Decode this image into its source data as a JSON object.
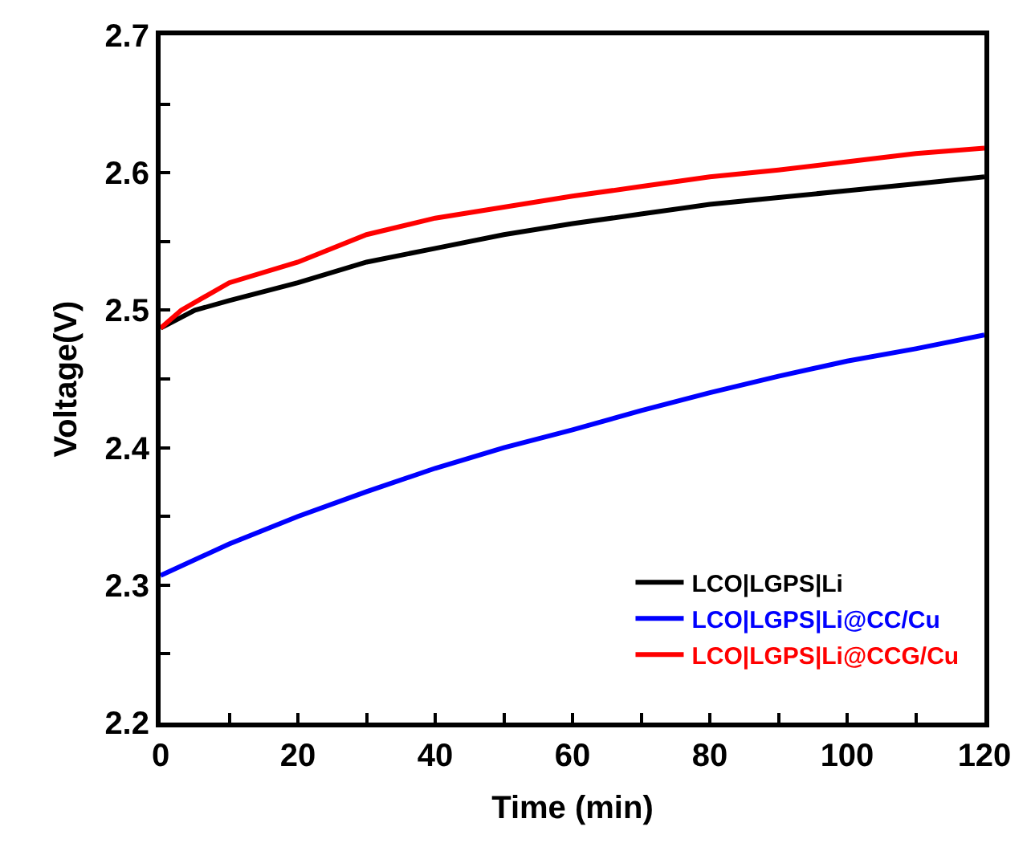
{
  "chart_data": {
    "type": "line",
    "xlabel": "Time (min)",
    "ylabel": "Voltage(V)",
    "xlim": [
      0,
      120
    ],
    "ylim": [
      2.2,
      2.7
    ],
    "xticks": [
      0,
      {
        "value": 10,
        "label": null
      },
      20,
      {
        "value": 30,
        "label": null
      },
      40,
      {
        "value": 50,
        "label": null
      },
      60,
      {
        "value": 70,
        "label": null
      },
      80,
      {
        "value": 90,
        "label": null
      },
      100,
      {
        "value": 110,
        "label": null
      },
      120
    ],
    "yticks": [
      2.2,
      {
        "value": 2.25,
        "label": null
      },
      2.3,
      {
        "value": 2.35,
        "label": null
      },
      2.4,
      {
        "value": 2.45,
        "label": null
      },
      2.5,
      {
        "value": 2.55,
        "label": null
      },
      2.6,
      {
        "value": 2.65,
        "label": null
      },
      2.7
    ],
    "legend": "bottom right",
    "marker": "none",
    "line_style": "solid",
    "series": [
      {
        "name": "LCO|LGPS|Li",
        "color": "#000000",
        "x": [
          0,
          5,
          10,
          20,
          30,
          40,
          50,
          60,
          70,
          80,
          90,
          100,
          110,
          120
        ],
        "values": [
          2.487,
          2.5,
          2.507,
          2.52,
          2.535,
          2.545,
          2.555,
          2.563,
          2.57,
          2.577,
          2.582,
          2.587,
          2.592,
          2.597
        ]
      },
      {
        "name": "LCO|LGPS|Li@CC/Cu",
        "color": "#0000ff",
        "x": [
          0,
          10,
          20,
          30,
          40,
          50,
          60,
          70,
          80,
          90,
          100,
          110,
          120
        ],
        "values": [
          2.307,
          2.33,
          2.35,
          2.368,
          2.385,
          2.4,
          2.413,
          2.427,
          2.44,
          2.452,
          2.463,
          2.472,
          2.482
        ]
      },
      {
        "name": "LCO|LGPS|Li@CCG/Cu",
        "color": "#ff0000",
        "x": [
          0,
          3,
          10,
          20,
          30,
          40,
          50,
          60,
          70,
          80,
          90,
          100,
          110,
          120
        ],
        "values": [
          2.487,
          2.5,
          2.52,
          2.535,
          2.555,
          2.567,
          2.575,
          2.583,
          2.59,
          2.597,
          2.602,
          2.608,
          2.614,
          2.618
        ]
      }
    ]
  }
}
